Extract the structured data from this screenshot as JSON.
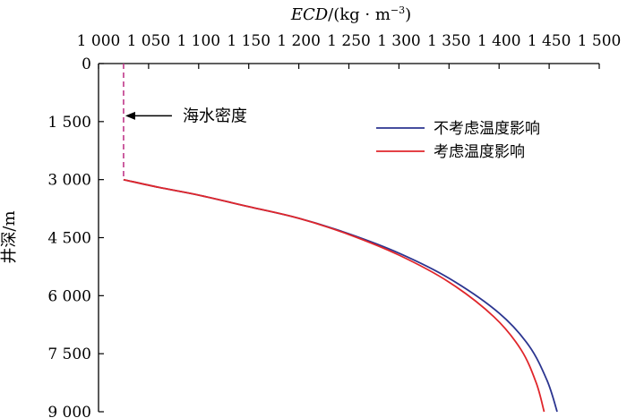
{
  "chart_data": {
    "type": "line",
    "title": "",
    "xlabel_main": "ECD",
    "xlabel_unit": "/(kg · m",
    "xlabel_sup": "−3",
    "xlabel_close": ")",
    "ylabel": "井深/m",
    "xlim": [
      1000,
      1500
    ],
    "ylim": [
      0,
      9000
    ],
    "y_inverted": true,
    "x_axis_position": "top",
    "grid": false,
    "x_tick_labels": [
      "1 000",
      "1 050",
      "1 100",
      "1 150",
      "1 200",
      "1 250",
      "1 300",
      "1 350",
      "1 400",
      "1 450",
      "1 500"
    ],
    "x_ticks": [
      1000,
      1050,
      1100,
      1150,
      1200,
      1250,
      1300,
      1350,
      1400,
      1450,
      1500
    ],
    "y_tick_labels": [
      "0",
      "1 500",
      "3 000",
      "4 500",
      "6 000",
      "7 500",
      "9 000"
    ],
    "y_ticks": [
      0,
      1500,
      3000,
      4500,
      6000,
      7500,
      9000
    ],
    "legend_position": "top-right",
    "annotation": {
      "text": "海水密度",
      "x": 1025,
      "y": 1350
    },
    "seawater": {
      "x": 1025,
      "depth_from": 0,
      "depth_to": 3000,
      "color": "#c0388a"
    },
    "series": [
      {
        "name": "不考虑温度影响",
        "color": "#2b3590",
        "points": [
          [
            1025,
            3000
          ],
          [
            1060,
            3200
          ],
          [
            1100,
            3400
          ],
          [
            1150,
            3700
          ],
          [
            1200,
            4000
          ],
          [
            1250,
            4400
          ],
          [
            1300,
            4900
          ],
          [
            1350,
            5550
          ],
          [
            1400,
            6450
          ],
          [
            1430,
            7300
          ],
          [
            1448,
            8200
          ],
          [
            1458,
            9000
          ]
        ]
      },
      {
        "name": "考虑温度影响",
        "color": "#e0262b",
        "points": [
          [
            1025,
            3000
          ],
          [
            1060,
            3200
          ],
          [
            1100,
            3400
          ],
          [
            1150,
            3700
          ],
          [
            1200,
            4000
          ],
          [
            1250,
            4420
          ],
          [
            1300,
            4950
          ],
          [
            1350,
            5650
          ],
          [
            1395,
            6550
          ],
          [
            1422,
            7400
          ],
          [
            1437,
            8250
          ],
          [
            1445,
            9000
          ]
        ]
      }
    ]
  }
}
